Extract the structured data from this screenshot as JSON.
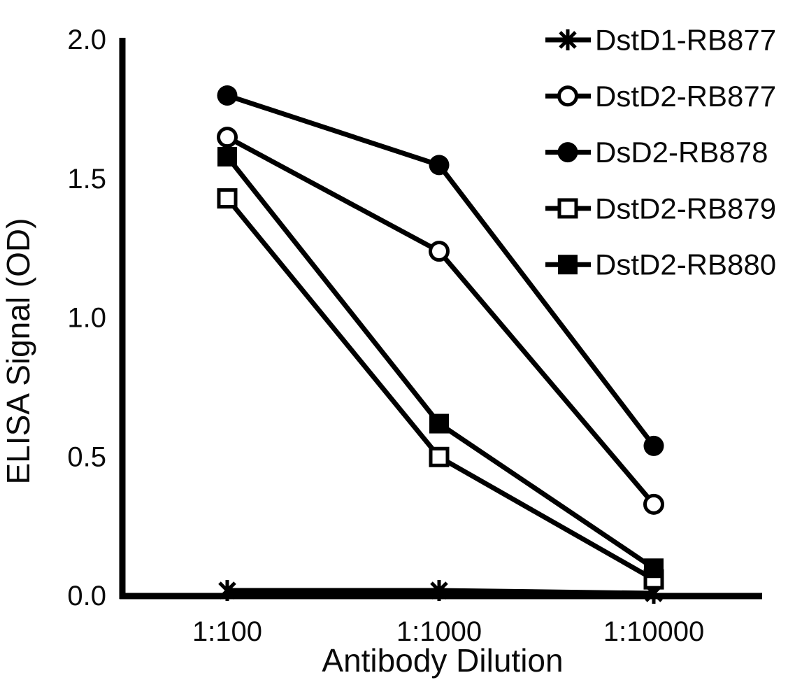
{
  "chart_data": {
    "type": "line",
    "title": "",
    "xlabel": "Antibody Dilution",
    "ylabel": "ELISA Signal (OD)",
    "categories": [
      "1:100",
      "1:1000",
      "1:10000"
    ],
    "x_axis_type": "categorical",
    "y_ticks": [
      "0.0",
      "0.5",
      "1.0",
      "1.5",
      "2.0"
    ],
    "ylim": [
      0.0,
      2.0
    ],
    "grid": false,
    "legend_position": "top-right",
    "series": [
      {
        "name": "DstD1-RB877",
        "marker": "asterisk",
        "values": [
          0.02,
          0.02,
          0.01
        ]
      },
      {
        "name": "DstD2-RB877",
        "marker": "circle-open",
        "values": [
          1.65,
          1.24,
          0.33
        ]
      },
      {
        "name": "DsD2-RB878",
        "marker": "circle-filled",
        "values": [
          1.8,
          1.55,
          0.54
        ]
      },
      {
        "name": "DstD2-RB879",
        "marker": "square-open",
        "values": [
          1.43,
          0.5,
          0.06
        ]
      },
      {
        "name": "DstD2-RB880",
        "marker": "square-filled",
        "values": [
          1.58,
          0.62,
          0.1
        ]
      }
    ],
    "colors": {
      "line": "#000000",
      "marker_fill_open": "#ffffff",
      "background": "#ffffff",
      "text": "#0a0a0a"
    }
  }
}
